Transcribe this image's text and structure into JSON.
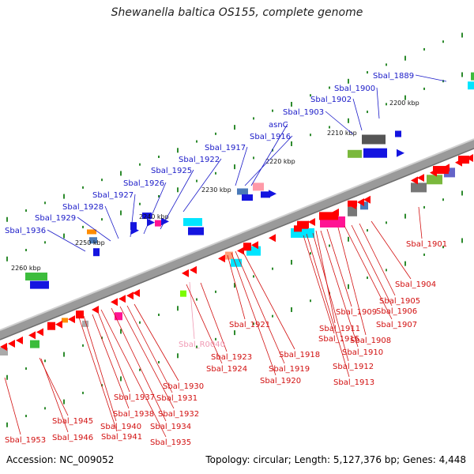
{
  "title": "Shewanella baltica OS155, complete genome",
  "footer": {
    "accession": "Accession: NC_009052",
    "topology": "Topology: circular; Length: 5,127,376 bp; Genes: 4,448"
  },
  "colors": {
    "forward_label": "#1a1ac8",
    "reverse_label": "#d21010",
    "rna_label": "#f09ab4",
    "backbone": "#8a8a8a"
  },
  "ticks": [
    "2200 kbp",
    "2210 kbp",
    "2220 kbp",
    "2230 kbp",
    "2240 kbp",
    "2250 kbp",
    "2260 kbp"
  ],
  "labels_top": [
    "Sbal_1889",
    "Sbal_1900",
    "Sbal_1902",
    "Sbal_1903",
    "asnC",
    "Sbal_1916",
    "Sbal_1917",
    "Sbal_1922",
    "Sbal_1925",
    "Sbal_1926",
    "Sbal_1927",
    "Sbal_1928",
    "Sbal_1929",
    "Sbal_1936"
  ],
  "labels_bottom": [
    "Sbal_1901",
    "Sbal_1904",
    "Sbal_1905",
    "Sbal_1906",
    "Sbal_1907",
    "Sbal_1908",
    "Sbal_1909",
    "Sbal_1910",
    "Sbal_1911",
    "Sbal_1912",
    "Sbal_1913",
    "Sbal_1915",
    "Sbal_1918",
    "Sbal_1919",
    "Sbal_1920",
    "Sbal_1921",
    "Sbal_R0040",
    "Sbal_1923",
    "Sbal_1924",
    "Sbal_1930",
    "Sbal_1931",
    "Sbal_1932",
    "Sbal_1934",
    "Sbal_1935",
    "Sbal_1937",
    "Sbal_1938",
    "Sbal_1940",
    "Sbal_1941",
    "Sbal_1945",
    "Sbal_1946",
    "Sbal_1953"
  ]
}
